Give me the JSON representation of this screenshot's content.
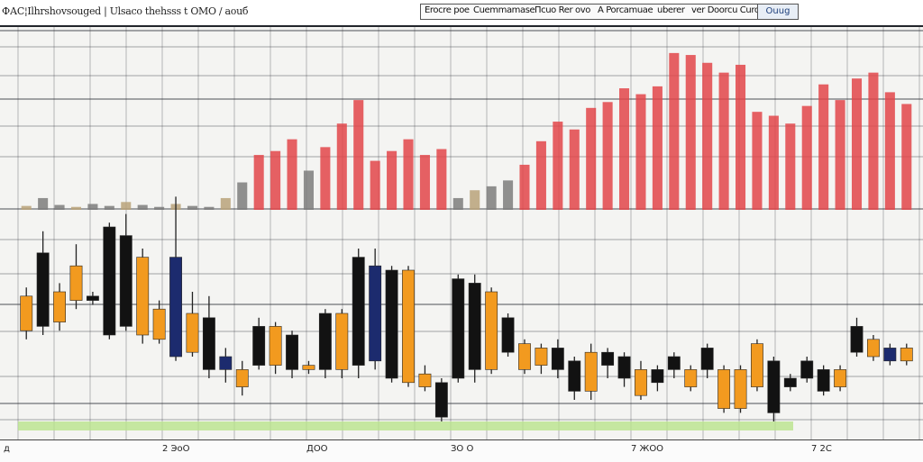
{
  "header": {
    "title": "ФАС¦Ilhrshovsouged | Ulsaco thehsss t ОМО / аоuб",
    "toolbar_items": [
      "Erocre poe",
      "Cuemmamase",
      "Псuo Rer ovo",
      "A Porcamuae",
      "uberer",
      "ver Doorcu Curorn"
    ],
    "zoom_label": "Ouug"
  },
  "footer": {
    "left_label": "д",
    "labels": [
      "2 ЭоО",
      "ДОО",
      "ЗО О",
      "7 ЖОО",
      "7 2С"
    ]
  },
  "colors": {
    "background": "#f4f4f2",
    "grid": "#2b2e35",
    "candle_dark": "#121212",
    "candle_orange": "#f29a1f",
    "candle_navy": "#1c2b6e",
    "volume_red": "#e2454a",
    "band_green": "#b9e38b"
  },
  "chart_data": {
    "type": "candlestick",
    "title": "",
    "xlabel": "",
    "ylabel": "",
    "ylim": [
      0,
      100
    ],
    "candles": [
      {
        "open": 42,
        "close": 58,
        "high": 62,
        "low": 38,
        "color": "orange"
      },
      {
        "open": 78,
        "close": 44,
        "high": 88,
        "low": 40,
        "color": "dark"
      },
      {
        "open": 46,
        "close": 60,
        "high": 64,
        "low": 42,
        "color": "orange"
      },
      {
        "open": 72,
        "close": 56,
        "high": 82,
        "low": 52,
        "color": "orange"
      },
      {
        "open": 56,
        "close": 58,
        "high": 60,
        "low": 54,
        "color": "dark"
      },
      {
        "open": 90,
        "close": 40,
        "high": 92,
        "low": 38,
        "color": "dark"
      },
      {
        "open": 86,
        "close": 44,
        "high": 96,
        "low": 42,
        "color": "dark"
      },
      {
        "open": 76,
        "close": 40,
        "high": 80,
        "low": 36,
        "color": "orange"
      },
      {
        "open": 52,
        "close": 38,
        "high": 56,
        "low": 36,
        "color": "orange"
      },
      {
        "open": 76,
        "close": 30,
        "high": 104,
        "low": 28,
        "color": "navy"
      },
      {
        "open": 50,
        "close": 32,
        "high": 60,
        "low": 30,
        "color": "orange"
      },
      {
        "open": 48,
        "close": 24,
        "high": 58,
        "low": 20,
        "color": "dark"
      },
      {
        "open": 30,
        "close": 24,
        "high": 34,
        "low": 18,
        "color": "navy"
      },
      {
        "open": 24,
        "close": 16,
        "high": 28,
        "low": 12,
        "color": "orange"
      },
      {
        "open": 44,
        "close": 26,
        "high": 48,
        "low": 24,
        "color": "dark"
      },
      {
        "open": 44,
        "close": 26,
        "high": 46,
        "low": 22,
        "color": "orange"
      },
      {
        "open": 40,
        "close": 24,
        "high": 42,
        "low": 20,
        "color": "dark"
      },
      {
        "open": 26,
        "close": 24,
        "high": 28,
        "low": 22,
        "color": "orange"
      },
      {
        "open": 50,
        "close": 24,
        "high": 52,
        "low": 20,
        "color": "dark"
      },
      {
        "open": 50,
        "close": 24,
        "high": 52,
        "low": 20,
        "color": "orange"
      },
      {
        "open": 76,
        "close": 26,
        "high": 80,
        "low": 20,
        "color": "dark"
      },
      {
        "open": 72,
        "close": 28,
        "high": 80,
        "low": 24,
        "color": "navy"
      },
      {
        "open": 70,
        "close": 20,
        "high": 72,
        "low": 18,
        "color": "dark"
      },
      {
        "open": 70,
        "close": 18,
        "high": 72,
        "low": 16,
        "color": "orange"
      },
      {
        "open": 22,
        "close": 16,
        "high": 26,
        "low": 14,
        "color": "orange"
      },
      {
        "open": 18,
        "close": 2,
        "high": 20,
        "low": 0,
        "color": "dark"
      },
      {
        "open": 66,
        "close": 20,
        "high": 68,
        "low": 18,
        "color": "dark"
      },
      {
        "open": 64,
        "close": 24,
        "high": 68,
        "low": 18,
        "color": "dark"
      },
      {
        "open": 60,
        "close": 24,
        "high": 62,
        "low": 22,
        "color": "orange"
      },
      {
        "open": 48,
        "close": 32,
        "high": 50,
        "low": 30,
        "color": "dark"
      },
      {
        "open": 36,
        "close": 24,
        "high": 38,
        "low": 22,
        "color": "orange"
      },
      {
        "open": 34,
        "close": 26,
        "high": 36,
        "low": 22,
        "color": "orange"
      },
      {
        "open": 34,
        "close": 24,
        "high": 38,
        "low": 20,
        "color": "dark"
      },
      {
        "open": 28,
        "close": 14,
        "high": 30,
        "low": 10,
        "color": "dark"
      },
      {
        "open": 32,
        "close": 14,
        "high": 36,
        "low": 10,
        "color": "orange"
      },
      {
        "open": 32,
        "close": 26,
        "high": 34,
        "low": 20,
        "color": "dark"
      },
      {
        "open": 30,
        "close": 20,
        "high": 32,
        "low": 16,
        "color": "dark"
      },
      {
        "open": 24,
        "close": 12,
        "high": 28,
        "low": 10,
        "color": "orange"
      },
      {
        "open": 24,
        "close": 18,
        "high": 26,
        "low": 14,
        "color": "dark"
      },
      {
        "open": 30,
        "close": 24,
        "high": 32,
        "low": 20,
        "color": "dark"
      },
      {
        "open": 24,
        "close": 16,
        "high": 26,
        "low": 14,
        "color": "orange"
      },
      {
        "open": 34,
        "close": 24,
        "high": 36,
        "low": 20,
        "color": "dark"
      },
      {
        "open": 24,
        "close": 6,
        "high": 26,
        "low": 4,
        "color": "orange"
      },
      {
        "open": 24,
        "close": 6,
        "high": 26,
        "low": 4,
        "color": "orange"
      },
      {
        "open": 36,
        "close": 16,
        "high": 38,
        "low": 14,
        "color": "orange"
      },
      {
        "open": 28,
        "close": 4,
        "high": 30,
        "low": 0,
        "color": "dark"
      },
      {
        "open": 20,
        "close": 16,
        "high": 22,
        "low": 14,
        "color": "dark"
      },
      {
        "open": 28,
        "close": 20,
        "high": 30,
        "low": 18,
        "color": "dark"
      },
      {
        "open": 24,
        "close": 14,
        "high": 26,
        "low": 12,
        "color": "dark"
      },
      {
        "open": 24,
        "close": 16,
        "high": 26,
        "low": 14,
        "color": "orange"
      },
      {
        "open": 44,
        "close": 32,
        "high": 48,
        "low": 30,
        "color": "dark"
      },
      {
        "open": 38,
        "close": 30,
        "high": 40,
        "low": 28,
        "color": "orange"
      },
      {
        "open": 34,
        "close": 28,
        "high": 36,
        "low": 26,
        "color": "navy"
      },
      {
        "open": 34,
        "close": 28,
        "high": 36,
        "low": 26,
        "color": "orange"
      }
    ],
    "volume": [
      4,
      12,
      5,
      3,
      6,
      4,
      8,
      5,
      3,
      6,
      4,
      3,
      12,
      28,
      56,
      60,
      72,
      40,
      64,
      88,
      112,
      50,
      60,
      72,
      56,
      62,
      12,
      20,
      24,
      30,
      46,
      70,
      90,
      82,
      104,
      110,
      124,
      118,
      126,
      160,
      158,
      150,
      140,
      148,
      100,
      96,
      88,
      106,
      128,
      112,
      134,
      140,
      120,
      108
    ],
    "volume_ylim": [
      0,
      170
    ]
  }
}
